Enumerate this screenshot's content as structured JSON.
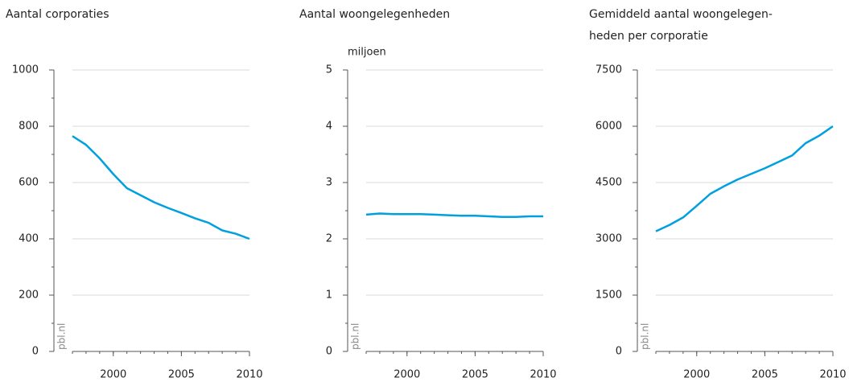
{
  "chart_data": [
    {
      "type": "line",
      "title": [
        "Aantal corporaties"
      ],
      "source": "pbl.nl",
      "x": [
        1997,
        1998,
        1999,
        2000,
        2001,
        2002,
        2003,
        2004,
        2005,
        2006,
        2007,
        2008,
        2009,
        2010
      ],
      "series": [
        {
          "color": "#00a0e0",
          "values": [
            765,
            734,
            686,
            630,
            580,
            555,
            530,
            510,
            492,
            473,
            457,
            430,
            418,
            400
          ]
        }
      ],
      "xlim": [
        1997,
        2010
      ],
      "xticks": [
        2000,
        2005,
        2010
      ],
      "ylim": [
        0,
        1000
      ],
      "yticks": [
        0,
        200,
        400,
        600,
        800,
        1000
      ],
      "grid": true
    },
    {
      "type": "line",
      "title": [
        "Aantal woongelegenheden"
      ],
      "unit": "miljoen",
      "source": "pbl.nl",
      "x": [
        1997,
        1998,
        1999,
        2000,
        2001,
        2002,
        2003,
        2004,
        2005,
        2006,
        2007,
        2008,
        2009,
        2010
      ],
      "series": [
        {
          "color": "#00a0e0",
          "values": [
            2.43,
            2.45,
            2.44,
            2.44,
            2.44,
            2.43,
            2.42,
            2.41,
            2.41,
            2.4,
            2.39,
            2.39,
            2.4,
            2.4
          ]
        }
      ],
      "xlim": [
        1997,
        2010
      ],
      "xticks": [
        2000,
        2005,
        2010
      ],
      "ylim": [
        0,
        5
      ],
      "yticks": [
        0,
        1,
        2,
        3,
        4,
        5
      ],
      "grid": true
    },
    {
      "type": "line",
      "title": [
        "Gemiddeld aantal woongelegen-",
        "heden per corporatie"
      ],
      "source": "pbl.nl",
      "x": [
        1997,
        1998,
        1999,
        2000,
        2001,
        2002,
        2003,
        2004,
        2005,
        2006,
        2007,
        2008,
        2009,
        2010
      ],
      "series": [
        {
          "color": "#00a0e0",
          "values": [
            3200,
            3370,
            3570,
            3880,
            4200,
            4400,
            4580,
            4730,
            4880,
            5050,
            5220,
            5550,
            5750,
            6000
          ]
        }
      ],
      "xlim": [
        1997,
        2010
      ],
      "xticks": [
        2000,
        2005,
        2010
      ],
      "ylim": [
        0,
        7500
      ],
      "yticks": [
        0,
        1500,
        3000,
        4500,
        6000,
        7500
      ],
      "grid": true
    }
  ]
}
